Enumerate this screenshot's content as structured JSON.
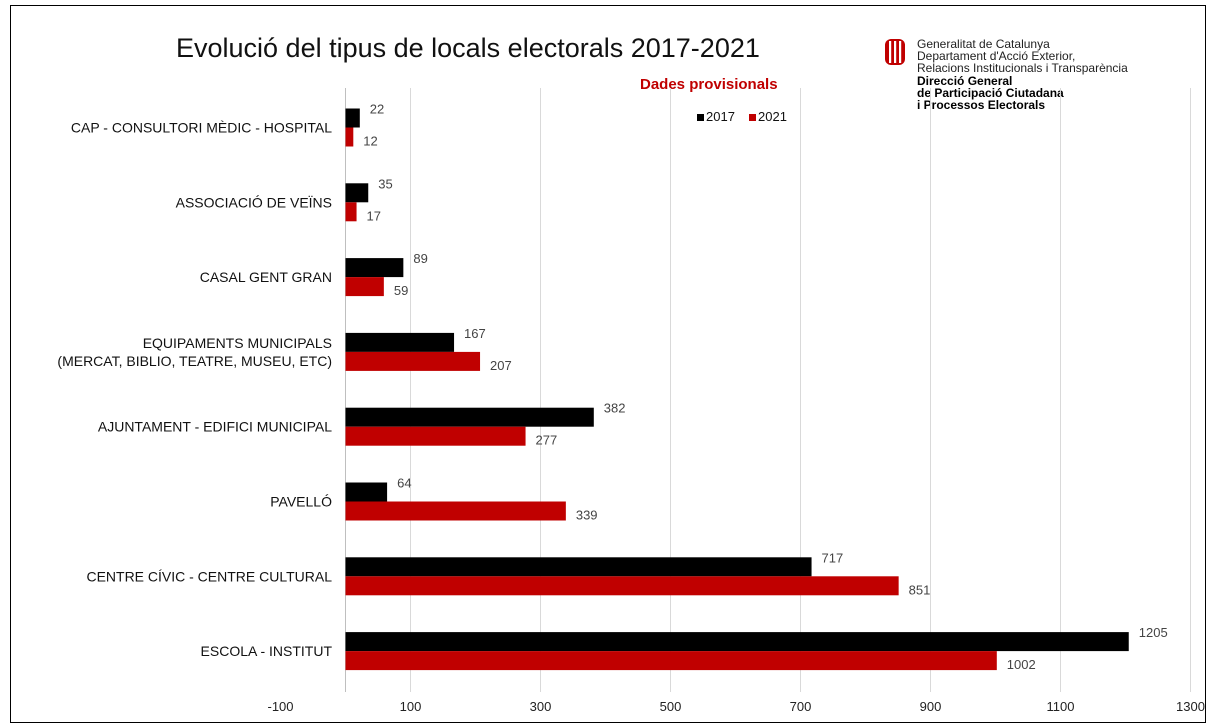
{
  "chart_data": {
    "type": "bar",
    "orientation": "horizontal",
    "title": "Evolució del tipus de locals electorals 2017-2021",
    "subtitle": "Dades provisionals",
    "categories": [
      [
        "CAP - CONSULTORI MÈDIC - HOSPITAL"
      ],
      [
        "ASSOCIACIÓ DE VEÏNS"
      ],
      [
        "CASAL GENT GRAN"
      ],
      [
        "EQUIPAMENTS MUNICIPALS",
        "(MERCAT, BIBLIO, TEATRE, MUSEU, ETC)"
      ],
      [
        "AJUNTAMENT - EDIFICI MUNICIPAL"
      ],
      [
        "PAVELLÓ"
      ],
      [
        "CENTRE CÍVIC - CENTRE CULTURAL"
      ],
      [
        "ESCOLA - INSTITUT"
      ]
    ],
    "series": [
      {
        "name": "2017",
        "color": "#000000",
        "values": [
          22,
          35,
          89,
          167,
          382,
          64,
          717,
          1205
        ]
      },
      {
        "name": "2021",
        "color": "#c00000",
        "values": [
          12,
          17,
          59,
          207,
          277,
          339,
          851,
          1002
        ]
      }
    ],
    "xlim": [
      -100,
      1300
    ],
    "xticks": [
      "-100",
      "100",
      "300",
      "500",
      "700",
      "900",
      "1100",
      "1300"
    ],
    "grid": true,
    "legend": "top-right"
  },
  "logo": {
    "lines": [
      "Generalitat de Catalunya",
      "Departament d'Acció Exterior,",
      "Relacions Institucionals i Transparència"
    ],
    "bold_lines": [
      "Direcció General",
      "de Participació Ciutadana",
      "i Processos Electorals"
    ]
  },
  "colors": {
    "accent": "#c00000",
    "gridline": "#d9d9d9"
  }
}
